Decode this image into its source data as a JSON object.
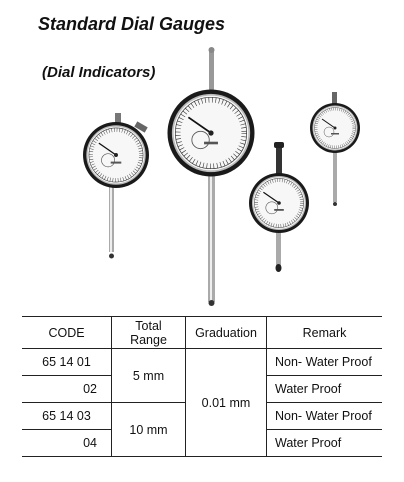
{
  "header": {
    "title": "Standard Dial Gauges",
    "subtitle": "(Dial Indicators)"
  },
  "table": {
    "columns": {
      "code": "CODE",
      "range": "Total\nRange",
      "graduation": "Graduation",
      "remark": "Remark"
    },
    "rows": [
      {
        "code": "65 14 01",
        "range": "5 mm",
        "graduation": "0.01 mm",
        "remark": "Non- Water Proof"
      },
      {
        "code": "02",
        "remark": "Water Proof"
      },
      {
        "code": "65 14 03",
        "range": "10 mm",
        "remark": "Non- Water Proof"
      },
      {
        "code": "04",
        "remark": "Water Proof"
      }
    ]
  }
}
